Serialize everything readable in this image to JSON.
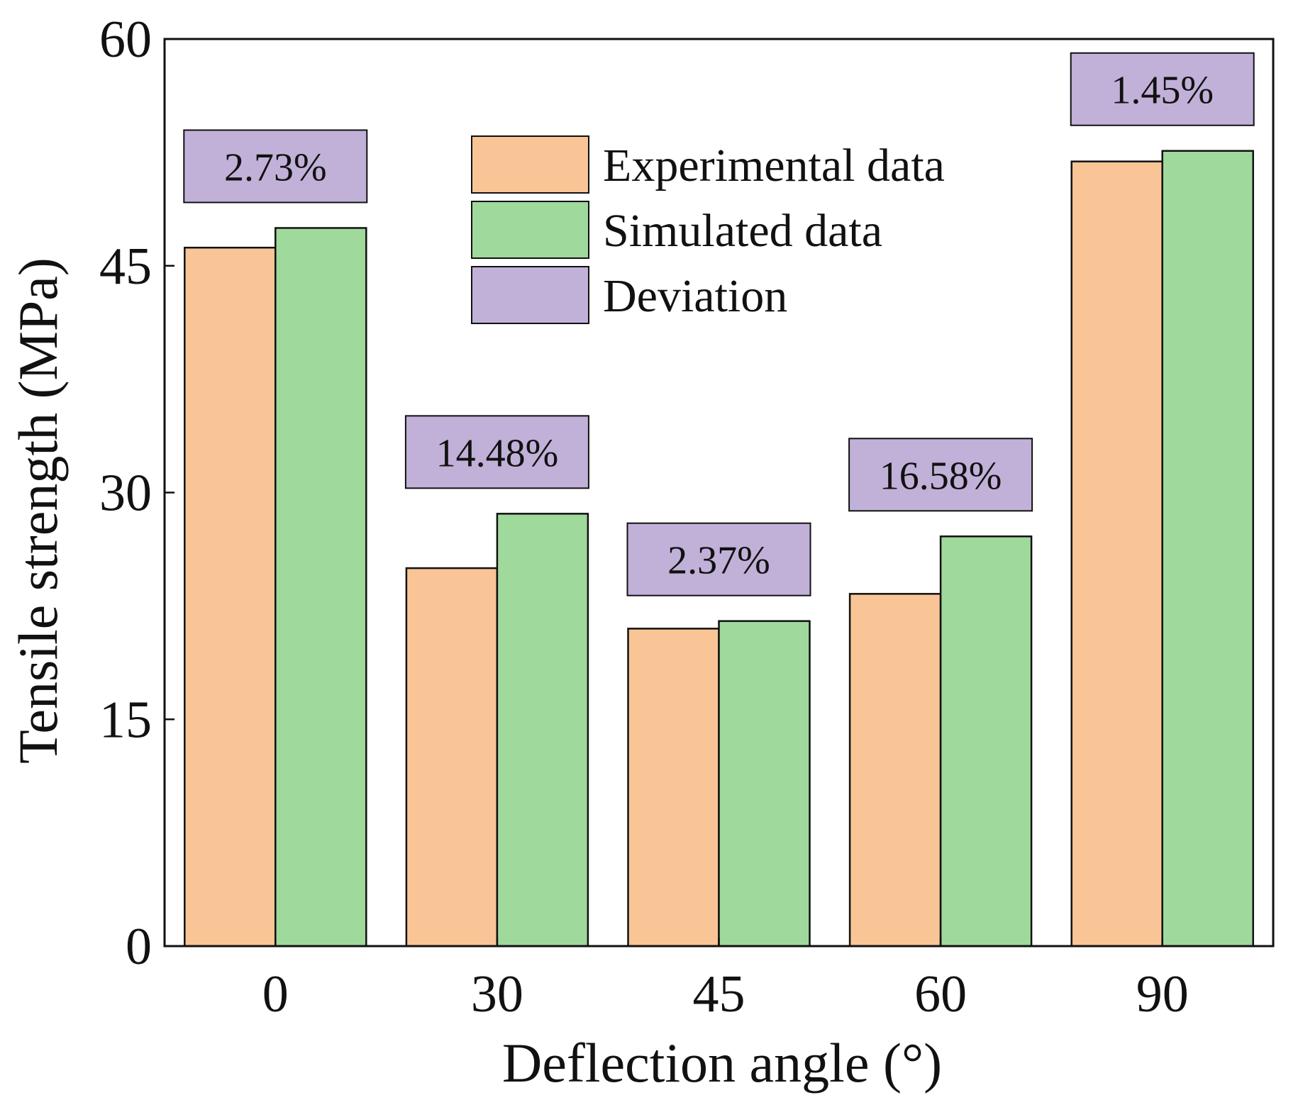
{
  "chart_data": {
    "type": "bar",
    "title": "",
    "xlabel": "Deflection angle (°)",
    "ylabel": "Tensile strength (MPa)",
    "categories": [
      "0",
      "30",
      "45",
      "60",
      "90"
    ],
    "ylim": [
      0,
      60
    ],
    "yticks": [
      "0",
      "15",
      "30",
      "45",
      "60"
    ],
    "series": [
      {
        "name": "Experimental data",
        "color": "#f9c596",
        "values": [
          46.2,
          25.0,
          21.0,
          23.3,
          51.9
        ]
      },
      {
        "name": "Simulated data",
        "color": "#9fd99b",
        "values": [
          47.5,
          28.6,
          21.5,
          27.1,
          52.6
        ]
      }
    ],
    "deviation": {
      "name": "Deviation",
      "color": "#c1b1d8",
      "labels": [
        "2.73%",
        "14.48%",
        "2.37%",
        "16.58%",
        "1.45%"
      ]
    },
    "legend_position": "top-center",
    "grid": false
  }
}
